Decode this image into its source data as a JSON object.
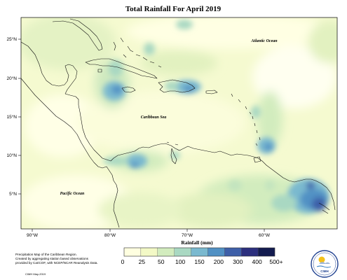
{
  "map": {
    "title": "Total Rainfall For April 2019",
    "lat_labels": [
      "25°N",
      "20°N",
      "15°N",
      "10°N",
      "5°N"
    ],
    "lon_labels": [
      "90°W",
      "80°W",
      "70°W",
      "60°W"
    ],
    "place_labels": {
      "atlantic": "Atlantic Ocean",
      "caribbean": "Caribbean Sea",
      "pacific": "Pacific Ocean"
    },
    "legend": {
      "title": "Rainfall (mm)",
      "ticks": [
        "0",
        "25",
        "50",
        "100",
        "150",
        "200",
        "300",
        "400",
        "500+"
      ],
      "colors": [
        "#ffffe0",
        "#f3f9c6",
        "#d2ecbe",
        "#a9d8c2",
        "#7ab9cf",
        "#5191c4",
        "#3e5fa8",
        "#2c2f7e",
        "#131b4f"
      ]
    },
    "notes": {
      "line1": "Precipitation Map of the Caribbean Region.",
      "line2": "Created by aggregating station based observations",
      "line3": "provided by CariCOF, with NCEP/NCAR Reanalysis Data.",
      "credit": "CIMH May-2019"
    },
    "logo_text": "CIMH"
  }
}
